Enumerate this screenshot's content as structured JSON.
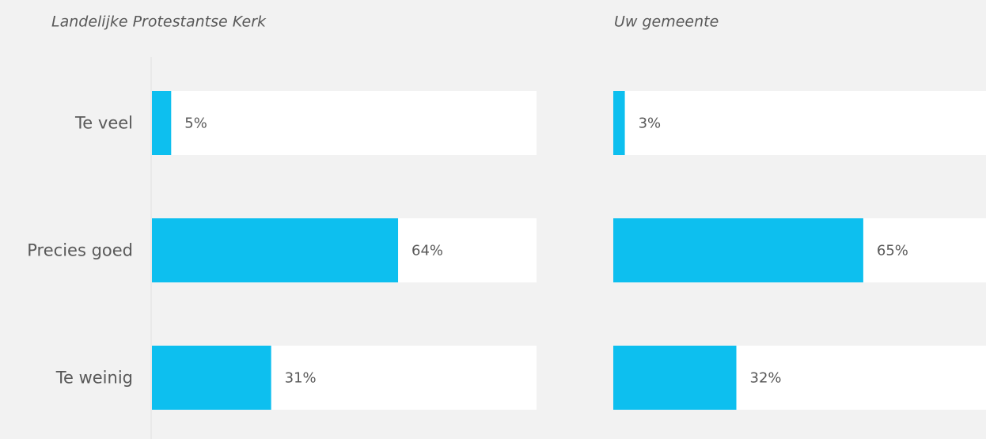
{
  "chart_data": [
    {
      "type": "bar",
      "orientation": "horizontal",
      "title": "Landelijke Protestantse Kerk",
      "categories": [
        "Te veel",
        "Precies goed",
        "Te weinig"
      ],
      "values": [
        5,
        64,
        31
      ],
      "value_labels": [
        "5%",
        "64%",
        "31%"
      ],
      "color": "#0dbfef",
      "track_color": "#ffffff",
      "xlim": [
        0,
        100
      ]
    },
    {
      "type": "bar",
      "orientation": "horizontal",
      "title": "Uw gemeente",
      "values": [
        3,
        65,
        32
      ],
      "value_labels": [
        "3%",
        "65%",
        "32%"
      ],
      "color": "#0dbfef",
      "track_color": "#ffffff",
      "xlim": [
        0,
        100
      ]
    }
  ]
}
